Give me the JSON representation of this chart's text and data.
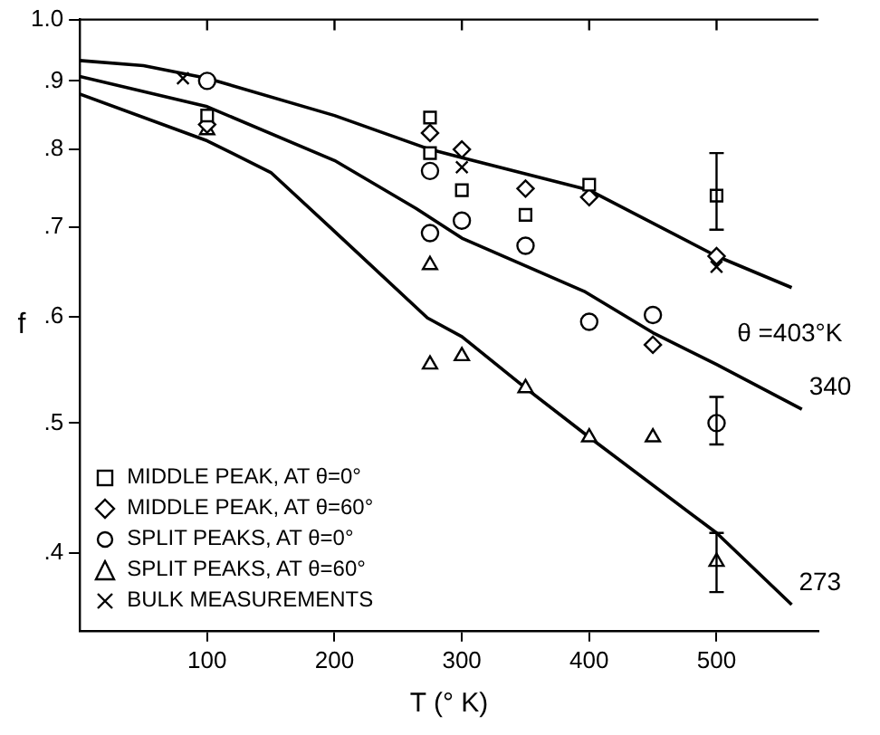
{
  "chart_data": {
    "type": "scatter",
    "xlabel": "T (° K)",
    "ylabel": "f",
    "log": "y",
    "xlim": [
      0,
      580
    ],
    "xticks": [
      100,
      200,
      300,
      400,
      500
    ],
    "ylim": [
      0.35,
      1.0
    ],
    "yticks": [
      {
        "value": 0.4,
        "label": ".4"
      },
      {
        "value": 0.5,
        "label": ".5"
      },
      {
        "value": 0.6,
        "label": ".6"
      },
      {
        "value": 0.7,
        "label": ".7"
      },
      {
        "value": 0.8,
        "label": ".8"
      },
      {
        "value": 0.9,
        "label": ".9"
      },
      {
        "value": 1.0,
        "label": "1.0"
      }
    ],
    "grid": false,
    "legend": "bottom left",
    "series": [
      {
        "name": "MIDDLE PEAK, AT θ=0°",
        "color": "#000000",
        "marker": "square",
        "x": [
          100,
          275,
          275,
          300,
          350,
          400,
          500
        ],
        "values": [
          0.848,
          0.845,
          0.795,
          0.746,
          0.715,
          0.753,
          0.739
        ],
        "errors": [
          null,
          null,
          null,
          null,
          null,
          null,
          [
            0.697,
            0.795
          ]
        ]
      },
      {
        "name": "MIDDLE PEAK, AT θ=60°",
        "color": "#000000",
        "marker": "diamond",
        "x": [
          100,
          275,
          300,
          350,
          400,
          450,
          500
        ],
        "values": [
          0.835,
          0.823,
          0.8,
          0.748,
          0.737,
          0.572,
          0.666
        ]
      },
      {
        "name": "SPLIT PEAKS, AT θ=0°",
        "color": "#000000",
        "marker": "circle",
        "x": [
          100,
          275,
          275,
          300,
          350,
          400,
          450,
          500
        ],
        "values": [
          0.9,
          0.771,
          0.693,
          0.708,
          0.678,
          0.595,
          0.602,
          0.5
        ],
        "errors": [
          null,
          null,
          null,
          null,
          null,
          null,
          null,
          [
            0.482,
            0.523
          ]
        ]
      },
      {
        "name": "SPLIT PEAKS, AT θ=60°",
        "color": "#000000",
        "marker": "triangle",
        "x": [
          100,
          275,
          275,
          300,
          350,
          400,
          450,
          500
        ],
        "values": [
          0.827,
          0.656,
          0.553,
          0.561,
          0.531,
          0.488,
          0.488,
          0.394
        ],
        "errors": [
          null,
          null,
          null,
          null,
          null,
          null,
          null,
          [
            0.374,
            0.414
          ]
        ]
      },
      {
        "name": "BULK MEASUREMENTS",
        "color": "#000000",
        "marker": "cross",
        "x": [
          81,
          300,
          500
        ],
        "values": [
          0.904,
          0.776,
          0.654
        ]
      },
      {
        "type": "line",
        "color": "#000000",
        "marker": "none",
        "x": [
          0,
          50,
          100,
          200,
          275,
          400,
          500,
          559
        ],
        "values": [
          0.932,
          0.924,
          0.904,
          0.848,
          0.8,
          0.746,
          0.666,
          0.631
        ]
      },
      {
        "type": "line",
        "color": "#000000",
        "marker": "none",
        "x": [
          0,
          100,
          200,
          264,
          300,
          396,
          450,
          500,
          567
        ],
        "values": [
          0.907,
          0.861,
          0.785,
          0.723,
          0.687,
          0.627,
          0.584,
          0.553,
          0.512
        ]
      },
      {
        "type": "line",
        "color": "#000000",
        "marker": "none",
        "x": [
          0,
          100,
          150,
          200,
          273,
          300,
          350,
          400,
          500,
          559
        ],
        "values": [
          0.88,
          0.812,
          0.769,
          0.695,
          0.599,
          0.58,
          0.531,
          0.488,
          0.414,
          0.366
        ]
      }
    ],
    "annotations": [
      "θ =403°K",
      "340",
      "273"
    ]
  }
}
